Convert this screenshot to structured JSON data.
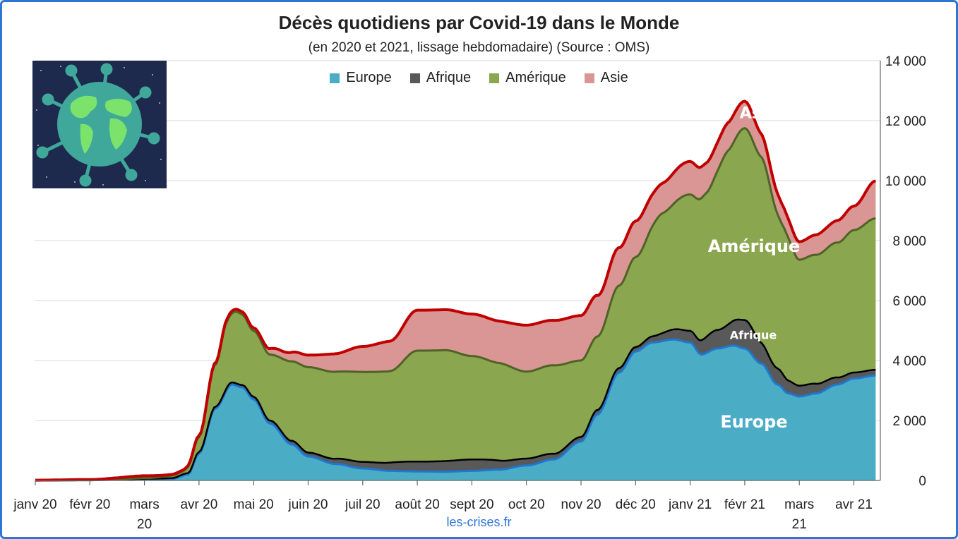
{
  "title": "Décès quotidiens par Covid-19 dans le Monde",
  "subtitle": "(en 2020 et 2021, lissage hebdomadaire) (Source : OMS)",
  "source_credit": "les-crises.fr",
  "colors": {
    "europe": "#4BACC6",
    "afrique": "#595959",
    "amerique": "#8AA64E",
    "asie": "#DA9694",
    "europe_line": "#1F77D0",
    "afrique_line": "#000000",
    "amerique_line": "#4F6228",
    "asie_line": "#C00000",
    "frame": "#2E75D6",
    "grid": "#D9D9D9"
  },
  "legend": [
    {
      "label": "Europe",
      "color": "#4BACC6"
    },
    {
      "label": "Afrique",
      "color": "#595959"
    },
    {
      "label": "Amérique",
      "color": "#8AA64E"
    },
    {
      "label": "Asie",
      "color": "#DA9694"
    }
  ],
  "area_labels": {
    "europe": "Europe",
    "afrique": "Afrique",
    "amerique": "Amérique",
    "asie": "Asie"
  },
  "logo_icon": "globe-virus-icon",
  "chart_data": {
    "type": "area",
    "stacked": true,
    "x_unit": "month",
    "x_start": "janv 20",
    "xlim": [
      0,
      15.4
    ],
    "x_ticks": [
      {
        "x": 0,
        "label": "janv 20"
      },
      {
        "x": 1,
        "label": "févr 20"
      },
      {
        "x": 2,
        "label": "mars 20"
      },
      {
        "x": 3,
        "label": "avr 20"
      },
      {
        "x": 4,
        "label": "mai 20"
      },
      {
        "x": 5,
        "label": "juin 20"
      },
      {
        "x": 6,
        "label": "juil 20"
      },
      {
        "x": 7,
        "label": "août 20"
      },
      {
        "x": 8,
        "label": "sept 20"
      },
      {
        "x": 9,
        "label": "oct 20"
      },
      {
        "x": 10,
        "label": "nov 20"
      },
      {
        "x": 11,
        "label": "déc 20"
      },
      {
        "x": 12,
        "label": "janv 21"
      },
      {
        "x": 13,
        "label": "févr 21"
      },
      {
        "x": 14,
        "label": "mars 21"
      },
      {
        "x": 15,
        "label": "avr 21"
      }
    ],
    "ylim": [
      0,
      14000
    ],
    "y_ticks": [
      0,
      2000,
      4000,
      6000,
      8000,
      10000,
      12000,
      14000
    ],
    "y_tick_labels": [
      "0",
      "2 000",
      "4 000",
      "6 000",
      "8 000",
      "10 000",
      "12 000",
      "14 000"
    ],
    "y_axis_side": "right",
    "grid": true,
    "legend_position": "top",
    "series": [
      {
        "name": "Europe",
        "points": [
          [
            0,
            0
          ],
          [
            1,
            10
          ],
          [
            1.5,
            25
          ],
          [
            2,
            50
          ],
          [
            2.5,
            50
          ],
          [
            2.8,
            200
          ],
          [
            3,
            900
          ],
          [
            3.3,
            2400
          ],
          [
            3.6,
            3200
          ],
          [
            3.8,
            3100
          ],
          [
            4,
            2700
          ],
          [
            4.3,
            1900
          ],
          [
            4.7,
            1200
          ],
          [
            5,
            800
          ],
          [
            5.5,
            550
          ],
          [
            6,
            400
          ],
          [
            6.5,
            320
          ],
          [
            7,
            300
          ],
          [
            7.5,
            290
          ],
          [
            8,
            320
          ],
          [
            8.5,
            360
          ],
          [
            9,
            500
          ],
          [
            9.5,
            700
          ],
          [
            10,
            1300
          ],
          [
            10.3,
            2200
          ],
          [
            10.7,
            3600
          ],
          [
            11,
            4300
          ],
          [
            11.3,
            4600
          ],
          [
            11.7,
            4700
          ],
          [
            12,
            4600
          ],
          [
            12.2,
            4200
          ],
          [
            12.5,
            4400
          ],
          [
            12.8,
            4500
          ],
          [
            13,
            4400
          ],
          [
            13.3,
            3900
          ],
          [
            13.6,
            3200
          ],
          [
            13.8,
            2900
          ],
          [
            14,
            2800
          ],
          [
            14.3,
            2900
          ],
          [
            14.7,
            3200
          ],
          [
            15,
            3400
          ],
          [
            15.4,
            3500
          ]
        ]
      },
      {
        "name": "Afrique",
        "points": [
          [
            0,
            0
          ],
          [
            1,
            0
          ],
          [
            2,
            5
          ],
          [
            3,
            50
          ],
          [
            3.6,
            70
          ],
          [
            4,
            90
          ],
          [
            5,
            130
          ],
          [
            6,
            220
          ],
          [
            7,
            330
          ],
          [
            8,
            380
          ],
          [
            9,
            230
          ],
          [
            10,
            150
          ],
          [
            11,
            150
          ],
          [
            12,
            390
          ],
          [
            12.5,
            620
          ],
          [
            13,
            950
          ],
          [
            13.5,
            560
          ],
          [
            14,
            360
          ],
          [
            15,
            200
          ],
          [
            15.4,
            190
          ]
        ]
      },
      {
        "name": "Amérique",
        "points": [
          [
            0,
            0
          ],
          [
            1,
            0
          ],
          [
            2,
            20
          ],
          [
            2.7,
            100
          ],
          [
            3,
            500
          ],
          [
            3.3,
            1400
          ],
          [
            3.5,
            2200
          ],
          [
            3.7,
            2400
          ],
          [
            4,
            2200
          ],
          [
            4.3,
            2200
          ],
          [
            4.7,
            2650
          ],
          [
            5,
            2850
          ],
          [
            5.5,
            2900
          ],
          [
            6,
            3000
          ],
          [
            6.5,
            3050
          ],
          [
            7,
            3700
          ],
          [
            7.5,
            3700
          ],
          [
            8,
            3450
          ],
          [
            8.5,
            3250
          ],
          [
            9,
            2900
          ],
          [
            9.5,
            2950
          ],
          [
            10,
            2550
          ],
          [
            10.3,
            2450
          ],
          [
            10.7,
            2750
          ],
          [
            11,
            3000
          ],
          [
            11.5,
            4000
          ],
          [
            12,
            4550
          ],
          [
            12.3,
            4800
          ],
          [
            12.7,
            5800
          ],
          [
            13,
            6400
          ],
          [
            13.3,
            6200
          ],
          [
            13.7,
            4950
          ],
          [
            14,
            4200
          ],
          [
            14.3,
            4300
          ],
          [
            14.7,
            4500
          ],
          [
            15,
            4750
          ],
          [
            15.4,
            5050
          ]
        ]
      },
      {
        "name": "Asie",
        "points": [
          [
            0,
            10
          ],
          [
            1,
            20
          ],
          [
            2,
            80
          ],
          [
            2.5,
            40
          ],
          [
            3,
            50
          ],
          [
            3.6,
            80
          ],
          [
            4,
            100
          ],
          [
            4.5,
            250
          ],
          [
            5,
            400
          ],
          [
            5.5,
            600
          ],
          [
            6,
            850
          ],
          [
            6.5,
            1000
          ],
          [
            7,
            1350
          ],
          [
            7.5,
            1350
          ],
          [
            8,
            1400
          ],
          [
            8.5,
            1400
          ],
          [
            9,
            1550
          ],
          [
            9.5,
            1500
          ],
          [
            10,
            1500
          ],
          [
            10.5,
            1300
          ],
          [
            11,
            1200
          ],
          [
            11.5,
            1000
          ],
          [
            12,
            1100
          ],
          [
            12.5,
            950
          ],
          [
            13,
            900
          ],
          [
            13.5,
            700
          ],
          [
            14,
            600
          ],
          [
            14.5,
            700
          ],
          [
            15,
            800
          ],
          [
            15.4,
            1250
          ]
        ]
      }
    ]
  }
}
